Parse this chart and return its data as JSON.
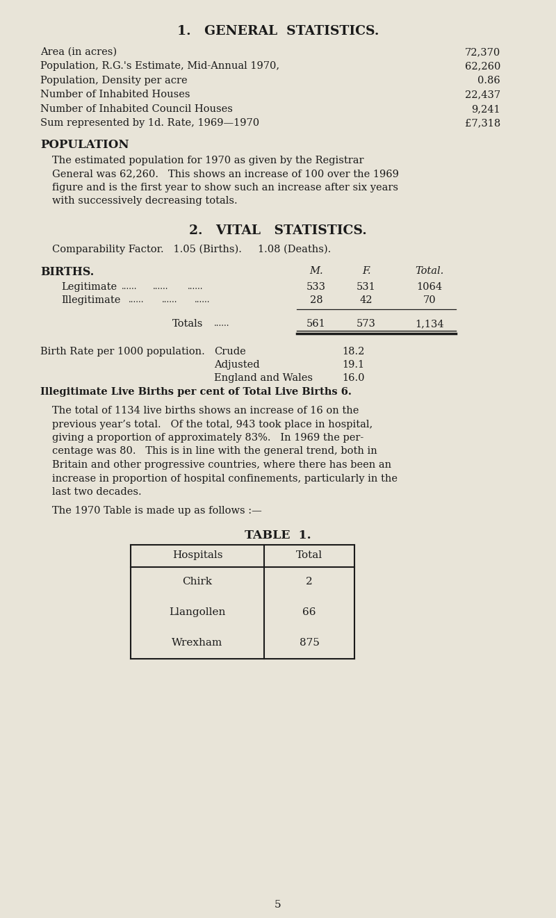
{
  "bg_color": "#e8e4d8",
  "text_color": "#1a1a1a",
  "title1": "1.   GENERAL  STATISTICS.",
  "title2": "2.   VITAL   STATISTICS.",
  "table_title": "TABLE  1.",
  "page_number": "5",
  "gen_stats": [
    [
      "Area (in acres)",
      "72,370"
    ],
    [
      "Population, R.G.'s Estimate, Mid-Annual 1970,",
      "62,260"
    ],
    [
      "Population, Density per acre",
      "0.86"
    ],
    [
      "Number of Inhabited Houses",
      "22,437"
    ],
    [
      "Number of Inhabited Council Houses",
      "9,241"
    ],
    [
      "Sum represented by 1d. Rate, 1969—1970",
      "£7,318"
    ]
  ],
  "pop_heading": "POPULATION",
  "pop_lines": [
    "The estimated population for 1970 as given by the Registrar",
    "General was 62,260.   This shows an increase of 100 over the 1969",
    "figure and is the first year to show such an increase after six years",
    "with successively decreasing totals."
  ],
  "comp_factor": "Comparability Factor.   1.05 (Births).     1.08 (Deaths).",
  "births_heading": "BIRTHS.",
  "col_M": "M.",
  "col_F": "F.",
  "col_Total": "Total.",
  "legit_label": "Legitimate",
  "legit_M": "533",
  "legit_F": "531",
  "legit_T": "1064",
  "illeg_label": "Illegitimate",
  "illeg_M": "28",
  "illeg_F": "42",
  "illeg_T": "70",
  "totals_label": "Totals",
  "total_M": "561",
  "total_F": "573",
  "total_T": "1,134",
  "br_label": "Birth Rate per 1000 population.",
  "br_crude_label": "Crude",
  "br_crude_val": "18.2",
  "br_adj_label": "Adjusted",
  "br_adj_val": "19.1",
  "br_ew_label": "England and Wales",
  "br_ew_val": "16.0",
  "illegit_note": "Illegitimate Live Births per cent of Total Live Births 6.",
  "para2_lines": [
    "The total of 1134 live births shows an increase of 16 on the",
    "previous year’s total.   Of the total, 943 took place in hospital,",
    "giving a proportion of approximately 83%.   In 1969 the per-",
    "centage was 80.   This is in line with the general trend, both in",
    "Britain and other progressive countries, where there has been an",
    "increase in proportion of hospital confinements, particularly in the",
    "last two decades."
  ],
  "table_intro": "The 1970 Table is made up as follows :—",
  "tbl_h1": "Hospitals",
  "tbl_h2": "Total",
  "tbl_rows": [
    [
      "Chirk",
      "2"
    ],
    [
      "Llangollen",
      "66"
    ],
    [
      "Wrexham",
      "875"
    ]
  ]
}
